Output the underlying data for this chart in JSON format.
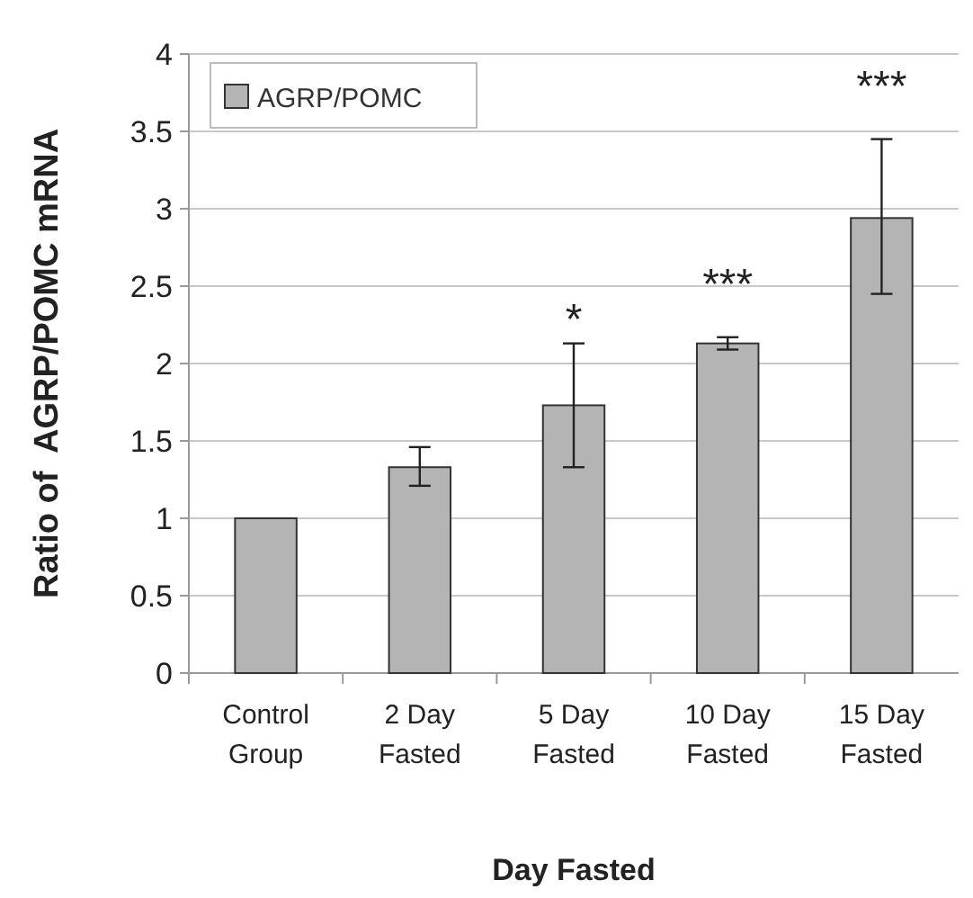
{
  "chart_data": {
    "type": "bar",
    "xlabel": "Day Fasted",
    "ylabel": "Ratio of  AGRP/POMC mRNA",
    "categories": [
      "Control\nGroup",
      "2 Day\nFasted",
      "5 Day\nFasted",
      "10 Day\nFasted",
      "15 Day\nFasted"
    ],
    "series": [
      {
        "name": "AGRP/POMC",
        "color": "#b4b4b4",
        "values": [
          1,
          1.33,
          1.73,
          2.13,
          2.94
        ],
        "errors": [
          null,
          [
            1.21,
            1.46
          ],
          [
            1.33,
            2.13
          ],
          [
            2.09,
            2.17
          ],
          [
            2.45,
            3.45
          ]
        ]
      }
    ],
    "ylim": [
      0,
      4
    ],
    "yticks": [
      0,
      0.5,
      1,
      1.5,
      2,
      2.5,
      3,
      3.5,
      4
    ],
    "grid": "y",
    "legend": "top left",
    "annotations": [
      "*",
      "***",
      "***"
    ]
  }
}
